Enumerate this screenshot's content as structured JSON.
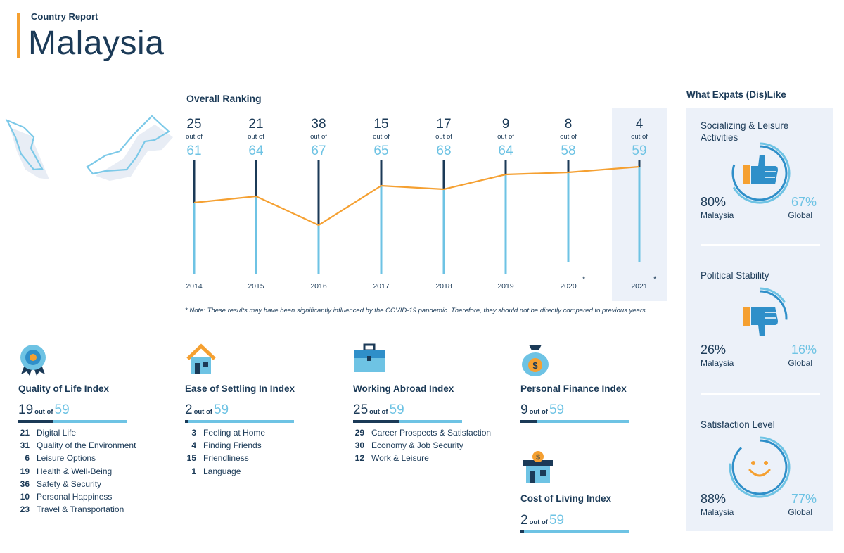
{
  "header": {
    "subtitle": "Country Report",
    "title": "Malaysia"
  },
  "colors": {
    "navy": "#1b3a57",
    "light_blue": "#6ec3e4",
    "orange": "#f5a031",
    "panel": "#ecf1f9"
  },
  "chart_data": {
    "type": "line",
    "title": "Overall Ranking",
    "x": [
      "2014",
      "2015",
      "2016",
      "2017",
      "2018",
      "2019",
      "2020",
      "2021"
    ],
    "rank": [
      25,
      21,
      38,
      15,
      17,
      9,
      8,
      4
    ],
    "out_of_label": "out of",
    "total": [
      61,
      64,
      67,
      65,
      68,
      64,
      58,
      59
    ],
    "asterisk_years": [
      "2020",
      "2021"
    ],
    "highlight_year": "2021",
    "year_labels": [
      "2014",
      "2015",
      "2016",
      "2017",
      "2018",
      "2019",
      "2020",
      "2021"
    ],
    "asterisk": "*"
  },
  "note": "* Note: These results may have been significantly influenced by the COVID-19 pandemic. Therefore, they should not be directly compared to previous years.",
  "indices": [
    {
      "title": "Quality of Life Index",
      "icon": "medal-icon",
      "rank": "19",
      "out_of": "out of",
      "total": "59",
      "fraction": 0.32,
      "subs": [
        {
          "n": "21",
          "label": "Digital Life"
        },
        {
          "n": "31",
          "label": "Quality of the Environment"
        },
        {
          "n": "6",
          "label": "Leisure Options"
        },
        {
          "n": "19",
          "label": "Health & Well-Being"
        },
        {
          "n": "36",
          "label": "Safety & Security"
        },
        {
          "n": "10",
          "label": "Personal Happiness"
        },
        {
          "n": "23",
          "label": "Travel & Transportation"
        }
      ]
    },
    {
      "title": "Ease of Settling In Index",
      "icon": "house-icon",
      "rank": "2",
      "out_of": "out of",
      "total": "59",
      "fraction": 0.034,
      "subs": [
        {
          "n": "3",
          "label": "Feeling at Home"
        },
        {
          "n": "4",
          "label": "Finding Friends"
        },
        {
          "n": "15",
          "label": "Friendliness"
        },
        {
          "n": "1",
          "label": "Language"
        }
      ]
    },
    {
      "title": "Working Abroad Index",
      "icon": "briefcase-icon",
      "rank": "25",
      "out_of": "out of",
      "total": "59",
      "fraction": 0.42,
      "subs": [
        {
          "n": "29",
          "label": "Career Prospects & Satisfaction"
        },
        {
          "n": "30",
          "label": "Economy & Job Security"
        },
        {
          "n": "12",
          "label": "Work & Leisure"
        }
      ]
    },
    {
      "title": "Personal Finance Index",
      "icon": "money-bag-icon",
      "rank": "9",
      "out_of": "out of",
      "total": "59",
      "fraction": 0.15,
      "subs": []
    },
    {
      "title": "Cost of Living Index",
      "icon": "house-dollar-icon",
      "rank": "2",
      "out_of": "out of",
      "total": "59",
      "fraction": 0.034,
      "subs": []
    }
  ],
  "likes": {
    "title": "What Expats (Dis)Like",
    "items": [
      {
        "name": "Socializing & Leisure Activities",
        "icon": "thumbs-up-icon",
        "malaysia": "80%",
        "global": "67%",
        "malaysia_value": 80,
        "global_value": 67,
        "malaysia_label": "Malaysia",
        "global_label": "Global"
      },
      {
        "name": "Political Stability",
        "icon": "thumbs-down-icon",
        "malaysia": "26%",
        "global": "16%",
        "malaysia_value": 26,
        "global_value": 16,
        "malaysia_label": "Malaysia",
        "global_label": "Global"
      },
      {
        "name": "Satisfaction Level",
        "icon": "smiley-icon",
        "malaysia": "88%",
        "global": "77%",
        "malaysia_value": 88,
        "global_value": 77,
        "malaysia_label": "Malaysia",
        "global_label": "Global"
      }
    ]
  }
}
